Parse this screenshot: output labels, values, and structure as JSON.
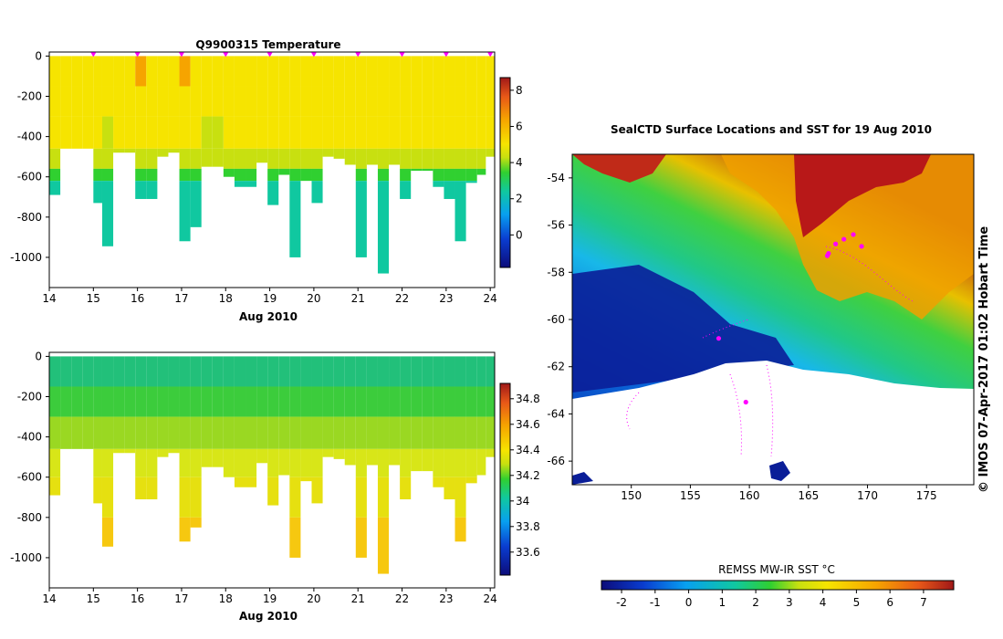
{
  "figure": {
    "watermark": "© IMOS 07-Apr-2017 01:02 Hobart Time"
  },
  "chart_data": [
    {
      "id": "temperature",
      "type": "heatmap",
      "title": "Q9900315  Temperature",
      "xlabel": "Aug 2010",
      "ylabel": "",
      "xlim": [
        14,
        24.1
      ],
      "ylim": [
        -1150,
        20
      ],
      "x_ticks": [
        14,
        15,
        16,
        17,
        18,
        19,
        20,
        21,
        22,
        23,
        24
      ],
      "y_ticks": [
        0,
        -200,
        -400,
        -600,
        -800,
        -1000
      ],
      "colorbar": {
        "min": -1.8,
        "max": 8.7,
        "ticks": [
          8,
          6,
          4,
          2,
          0
        ]
      },
      "profile_markers_x": [
        15,
        16,
        17,
        18,
        19,
        20,
        21,
        22,
        23,
        24
      ],
      "profiles": [
        {
          "x": 14.0,
          "max_depth": -690,
          "surface": 6.0
        },
        {
          "x": 14.25,
          "max_depth": -460,
          "surface": 6.2
        },
        {
          "x": 14.5,
          "max_depth": -460,
          "surface": 6.4
        },
        {
          "x": 14.75,
          "max_depth": -460,
          "surface": 6.1
        },
        {
          "x": 15.0,
          "max_depth": -730,
          "surface": 6.0
        },
        {
          "x": 15.2,
          "max_depth": -945,
          "surface": 5.8
        },
        {
          "x": 15.45,
          "max_depth": -480,
          "surface": 6.3
        },
        {
          "x": 15.7,
          "max_depth": -480,
          "surface": 6.0
        },
        {
          "x": 15.95,
          "max_depth": -710,
          "surface": 6.6
        },
        {
          "x": 16.2,
          "max_depth": -710,
          "surface": 6.4
        },
        {
          "x": 16.45,
          "max_depth": -500,
          "surface": 6.2
        },
        {
          "x": 16.7,
          "max_depth": -480,
          "surface": 6.1
        },
        {
          "x": 16.95,
          "max_depth": -920,
          "surface": 6.5
        },
        {
          "x": 17.2,
          "max_depth": -850,
          "surface": 6.0
        },
        {
          "x": 17.45,
          "max_depth": -550,
          "surface": 5.8
        },
        {
          "x": 17.7,
          "max_depth": -550,
          "surface": 5.5
        },
        {
          "x": 17.95,
          "max_depth": -600,
          "surface": 6.3
        },
        {
          "x": 18.2,
          "max_depth": -650,
          "surface": 6.1
        },
        {
          "x": 18.45,
          "max_depth": -650,
          "surface": 6.2
        },
        {
          "x": 18.7,
          "max_depth": -530,
          "surface": 6.0
        },
        {
          "x": 18.95,
          "max_depth": -740,
          "surface": 5.9
        },
        {
          "x": 19.2,
          "max_depth": -590,
          "surface": 6.0
        },
        {
          "x": 19.45,
          "max_depth": -1000,
          "surface": 6.2
        },
        {
          "x": 19.7,
          "max_depth": -620,
          "surface": 6.4
        },
        {
          "x": 19.95,
          "max_depth": -730,
          "surface": 6.0
        },
        {
          "x": 20.2,
          "max_depth": -500,
          "surface": 6.1
        },
        {
          "x": 20.45,
          "max_depth": -510,
          "surface": 6.3
        },
        {
          "x": 20.7,
          "max_depth": -540,
          "surface": 6.0
        },
        {
          "x": 20.95,
          "max_depth": -1000,
          "surface": 6.2
        },
        {
          "x": 21.2,
          "max_depth": -540,
          "surface": 6.0
        },
        {
          "x": 21.45,
          "max_depth": -1080,
          "surface": 5.9
        },
        {
          "x": 21.7,
          "max_depth": -540,
          "surface": 6.1
        },
        {
          "x": 21.95,
          "max_depth": -710,
          "surface": 6.0
        },
        {
          "x": 22.2,
          "max_depth": -570,
          "surface": 6.3
        },
        {
          "x": 22.45,
          "max_depth": -570,
          "surface": 6.1
        },
        {
          "x": 22.7,
          "max_depth": -650,
          "surface": 6.0
        },
        {
          "x": 22.95,
          "max_depth": -710,
          "surface": 6.2
        },
        {
          "x": 23.2,
          "max_depth": -920,
          "surface": 6.0
        },
        {
          "x": 23.45,
          "max_depth": -630,
          "surface": 6.1
        },
        {
          "x": 23.7,
          "max_depth": -590,
          "surface": 6.0
        },
        {
          "x": 23.9,
          "max_depth": -500,
          "surface": 5.9
        }
      ]
    },
    {
      "id": "salinity",
      "type": "heatmap",
      "title": "",
      "xlabel": "Aug 2010",
      "ylabel": "",
      "xlim": [
        14,
        24.1
      ],
      "ylim": [
        -1150,
        20
      ],
      "x_ticks": [
        14,
        15,
        16,
        17,
        18,
        19,
        20,
        21,
        22,
        23,
        24
      ],
      "y_ticks": [
        0,
        -200,
        -400,
        -600,
        -800,
        -1000
      ],
      "colorbar": {
        "min": 33.42,
        "max": 34.92,
        "ticks": [
          34.8,
          34.6,
          34.4,
          34.2,
          34,
          33.8,
          33.6
        ]
      }
    },
    {
      "id": "sst_map",
      "type": "heatmap",
      "title": "SealCTD Surface Locations and SST for 19 Aug 2010",
      "xlabel": "",
      "ylabel": "",
      "xlim": [
        145,
        179
      ],
      "ylim": [
        -67,
        -53
      ],
      "x_ticks": [
        150,
        155,
        160,
        165,
        170,
        175
      ],
      "y_ticks": [
        -54,
        -56,
        -58,
        -60,
        -62,
        -64,
        -66
      ],
      "colorbar": {
        "label": "REMSS MW-IR SST °C",
        "min": -2.6,
        "max": 7.9,
        "ticks": [
          -2,
          -1,
          0,
          1,
          2,
          3,
          4,
          5,
          6,
          7
        ]
      },
      "surface_locations": [
        {
          "lon": 166.6,
          "lat": -57.3
        },
        {
          "lon": 167.3,
          "lat": -56.8
        },
        {
          "lon": 168.0,
          "lat": -56.6
        },
        {
          "lon": 168.8,
          "lat": -56.4
        },
        {
          "lon": 169.5,
          "lat": -56.9
        },
        {
          "lon": 159.7,
          "lat": -63.5
        },
        {
          "lon": 157.4,
          "lat": -60.8
        },
        {
          "lon": 166.7,
          "lat": -57.2
        }
      ]
    }
  ]
}
